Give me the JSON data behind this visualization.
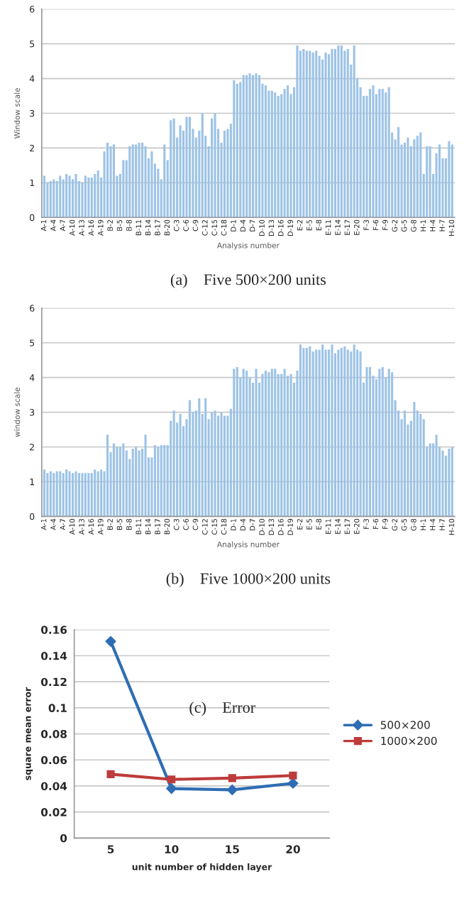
{
  "chart_data": [
    {
      "type": "bar",
      "title": "(a)    Five 500×200 units",
      "xlabel": "Analysis number",
      "ylabel": "Window scale",
      "categories": [
        "A-1",
        null,
        null,
        "A-4",
        null,
        null,
        "A-7",
        null,
        null,
        "A-10",
        null,
        null,
        "A-13",
        null,
        null,
        "A-16",
        null,
        null,
        "A-19",
        null,
        null,
        "B-2",
        null,
        null,
        "B-5",
        null,
        null,
        "B-8",
        null,
        null,
        "B-11",
        null,
        null,
        "B-14",
        null,
        null,
        "B-17",
        null,
        null,
        "B-20",
        null,
        null,
        "C-3",
        null,
        null,
        "C-6",
        null,
        null,
        "C-9",
        null,
        null,
        "C-12",
        null,
        null,
        "C-15",
        null,
        null,
        "C-18",
        null,
        null,
        "D-1",
        null,
        null,
        "D-4",
        null,
        null,
        "D-7",
        null,
        null,
        "D-10",
        null,
        null,
        "D-13",
        null,
        null,
        "D-16",
        null,
        null,
        "D-19",
        null,
        null,
        "E-2",
        null,
        null,
        "E-5",
        null,
        null,
        "E-8",
        null,
        null,
        "E-11",
        null,
        null,
        "E-14",
        null,
        null,
        "E-17",
        null,
        null,
        "E-20",
        null,
        null,
        "F-3",
        null,
        null,
        "F-6",
        null,
        null,
        "F-9",
        null,
        null,
        "G-2",
        null,
        null,
        "G-5",
        null,
        null,
        "G-8",
        null,
        null,
        "H-1",
        null,
        null,
        "H-4",
        null,
        null,
        "H-7",
        null,
        null,
        "H-10"
      ],
      "values": [
        1.2,
        1.0,
        1.05,
        1.1,
        1.05,
        1.2,
        1.1,
        1.25,
        1.2,
        1.1,
        1.25,
        1.05,
        1.0,
        1.2,
        1.15,
        1.15,
        1.25,
        1.35,
        1.15,
        1.9,
        2.15,
        2.05,
        2.1,
        1.2,
        1.25,
        1.65,
        1.65,
        2.05,
        2.1,
        2.1,
        2.15,
        2.15,
        2.05,
        1.7,
        1.9,
        1.55,
        1.4,
        1.1,
        2.1,
        1.65,
        2.8,
        2.85,
        2.3,
        2.65,
        2.5,
        2.9,
        2.9,
        2.55,
        2.3,
        2.5,
        3.0,
        2.35,
        2.05,
        2.85,
        3.0,
        2.55,
        2.15,
        2.5,
        2.55,
        2.7,
        3.95,
        3.85,
        3.9,
        4.1,
        4.1,
        4.15,
        4.1,
        4.15,
        4.1,
        3.85,
        3.8,
        3.65,
        3.65,
        3.6,
        3.5,
        3.55,
        3.7,
        3.8,
        3.55,
        3.75,
        4.95,
        4.8,
        4.85,
        4.8,
        4.8,
        4.75,
        4.8,
        4.65,
        4.55,
        4.75,
        4.7,
        4.85,
        4.85,
        4.95,
        4.95,
        4.8,
        4.85,
        4.4,
        4.95,
        4.0,
        3.75,
        3.5,
        3.5,
        3.7,
        3.8,
        3.55,
        3.7,
        3.7,
        3.6,
        3.75,
        2.45,
        2.25,
        2.6,
        2.1,
        2.15,
        2.3,
        2.05,
        2.25,
        2.35,
        2.45,
        1.25,
        2.05,
        2.05,
        1.25,
        1.85,
        2.1,
        1.7,
        1.7,
        2.2,
        2.1
      ],
      "color": "#9dc3e6",
      "ylim": [
        0,
        6
      ],
      "yticks": [
        0,
        1,
        2,
        3,
        4,
        5,
        6
      ],
      "grid": "y"
    },
    {
      "type": "bar",
      "title": "(b)    Five 1000×200 units",
      "xlabel": "Analysis number",
      "ylabel": "window scale",
      "categories": [
        "A-1",
        null,
        null,
        "A-4",
        null,
        null,
        "A-7",
        null,
        null,
        "A-10",
        null,
        null,
        "A-13",
        null,
        null,
        "A-16",
        null,
        null,
        "A-19",
        null,
        null,
        "B-2",
        null,
        null,
        "B-5",
        null,
        null,
        "B-8",
        null,
        null,
        "B-11",
        null,
        null,
        "B-14",
        null,
        null,
        "B-17",
        null,
        null,
        "B-20",
        null,
        null,
        "C-3",
        null,
        null,
        "C-6",
        null,
        null,
        "C-9",
        null,
        null,
        "C-12",
        null,
        null,
        "C-15",
        null,
        null,
        "C-18",
        null,
        null,
        "D-1",
        null,
        null,
        "D-4",
        null,
        null,
        "D-7",
        null,
        null,
        "D-10",
        null,
        null,
        "D-13",
        null,
        null,
        "D-16",
        null,
        null,
        "D-19",
        null,
        null,
        "E-2",
        null,
        null,
        "E-5",
        null,
        null,
        "E-8",
        null,
        null,
        "E-11",
        null,
        null,
        "E-14",
        null,
        null,
        "E-17",
        null,
        null,
        "E-20",
        null,
        null,
        "F-3",
        null,
        null,
        "F-6",
        null,
        null,
        "F-9",
        null,
        null,
        "G-2",
        null,
        null,
        "G-5",
        null,
        null,
        "G-8",
        null,
        null,
        "H-1",
        null,
        null,
        "H-4",
        null,
        null,
        "H-7",
        null,
        null,
        "H-10"
      ],
      "values": [
        1.35,
        1.25,
        1.3,
        1.25,
        1.3,
        1.3,
        1.25,
        1.35,
        1.3,
        1.25,
        1.3,
        1.25,
        1.25,
        1.25,
        1.25,
        1.25,
        1.35,
        1.3,
        1.35,
        1.3,
        2.35,
        1.85,
        2.1,
        2.0,
        2.0,
        2.1,
        1.9,
        1.65,
        1.95,
        2.0,
        1.9,
        1.95,
        2.35,
        1.7,
        1.7,
        2.05,
        2.0,
        2.05,
        2.05,
        2.05,
        2.75,
        3.05,
        2.7,
        2.95,
        2.6,
        2.8,
        3.35,
        3.0,
        3.05,
        3.4,
        2.95,
        3.4,
        2.8,
        3.0,
        3.05,
        2.9,
        3.0,
        2.9,
        2.9,
        3.1,
        4.25,
        4.3,
        4.0,
        4.25,
        4.2,
        4.0,
        3.85,
        4.25,
        3.85,
        4.1,
        4.2,
        4.15,
        4.25,
        4.25,
        4.1,
        4.1,
        4.25,
        4.05,
        4.1,
        3.85,
        4.2,
        4.95,
        4.85,
        4.85,
        4.9,
        4.75,
        4.8,
        4.8,
        4.95,
        4.8,
        4.8,
        4.95,
        4.7,
        4.8,
        4.85,
        4.9,
        4.8,
        4.75,
        4.95,
        4.8,
        4.75,
        3.85,
        4.3,
        4.3,
        4.05,
        3.95,
        4.25,
        4.3,
        4.0,
        4.25,
        4.15,
        3.35,
        3.05,
        2.8,
        3.05,
        2.65,
        2.75,
        3.3,
        3.05,
        2.95,
        2.8,
        2.0,
        2.1,
        2.1,
        2.35,
        2.0,
        1.9,
        1.75,
        1.95,
        2.0
      ],
      "color": "#9dc3e6",
      "ylim": [
        0,
        6
      ],
      "yticks": [
        0,
        1,
        2,
        3,
        4,
        5,
        6
      ],
      "grid": "y"
    },
    {
      "type": "line",
      "xlabel": "unit number of hidden layer",
      "ylabel": "square mean error",
      "categories": [
        "5",
        "10",
        "15",
        "20"
      ],
      "series": [
        {
          "name": "500×200",
          "color": "#2e6db4",
          "marker": "diamond",
          "values": [
            0.151,
            0.038,
            0.037,
            0.042
          ]
        },
        {
          "name": "1000×200",
          "color": "#be3b3b",
          "marker": "square",
          "values": [
            0.049,
            0.045,
            0.046,
            0.048
          ]
        }
      ],
      "ylim": [
        0,
        0.16
      ],
      "yticks": [
        0,
        0.02,
        0.04,
        0.06,
        0.08,
        0.1,
        0.12,
        0.14,
        0.16
      ],
      "annotations": [
        "(c)    Error"
      ],
      "grid": "y",
      "legend": "right"
    }
  ]
}
